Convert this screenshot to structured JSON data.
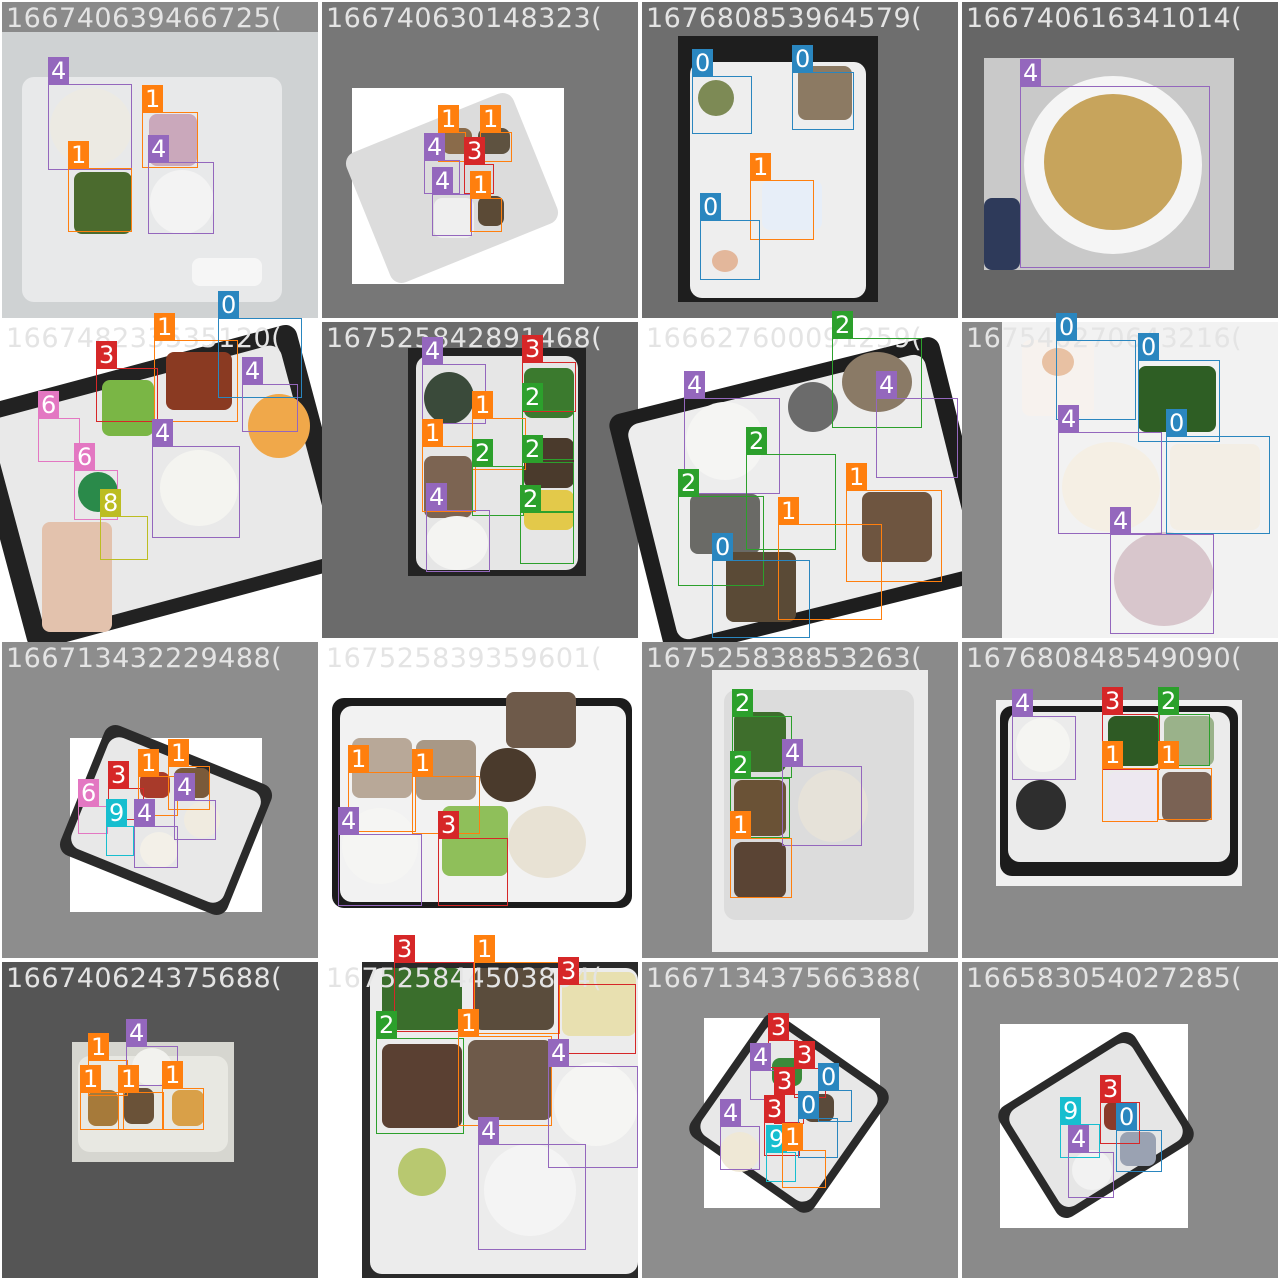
{
  "colors": {
    "0": "#2a86bf",
    "1": "#ff7f0e",
    "2": "#2ca02c",
    "3": "#d62728",
    "4": "#9467bd",
    "6": "#e377c2",
    "8": "#bcbd22",
    "9": "#17becf"
  },
  "cells": [
    {
      "id": "166740639466725(",
      "bg": "#8a8a8a",
      "boxes": [
        {
          "label": "4"
        },
        {
          "label": "1"
        },
        {
          "label": "1"
        },
        {
          "label": "4"
        }
      ]
    },
    {
      "id": "166740630148323(",
      "bg": "#777777",
      "boxes": [
        {
          "label": "1"
        },
        {
          "label": "1"
        },
        {
          "label": "4"
        },
        {
          "label": "3"
        },
        {
          "label": "4"
        },
        {
          "label": "1"
        }
      ]
    },
    {
      "id": "167680853964579(",
      "bg": "#6e6e6e",
      "boxes": [
        {
          "label": "0"
        },
        {
          "label": "0"
        },
        {
          "label": "1"
        },
        {
          "label": "0"
        }
      ]
    },
    {
      "id": "166740616341014(",
      "bg": "#666666",
      "boxes": [
        {
          "label": "4"
        }
      ]
    },
    {
      "id": "166748233535120(",
      "bg": "#ffffff",
      "boxes": [
        {
          "label": "1"
        },
        {
          "label": "0"
        },
        {
          "label": "3"
        },
        {
          "label": "4"
        },
        {
          "label": "6"
        },
        {
          "label": "4"
        },
        {
          "label": "6"
        },
        {
          "label": "8"
        }
      ]
    },
    {
      "id": "167525842891468(",
      "bg": "#6b6b6b",
      "boxes": [
        {
          "label": "4"
        },
        {
          "label": "3"
        },
        {
          "label": "2"
        },
        {
          "label": "1"
        },
        {
          "label": "1"
        },
        {
          "label": "2"
        },
        {
          "label": "2"
        },
        {
          "label": "4"
        },
        {
          "label": "2"
        }
      ]
    },
    {
      "id": "166627600091259(",
      "bg": "#ffffff",
      "boxes": [
        {
          "label": "2"
        },
        {
          "label": "4"
        },
        {
          "label": "4"
        },
        {
          "label": "2"
        },
        {
          "label": "2"
        },
        {
          "label": "1"
        },
        {
          "label": "1"
        },
        {
          "label": "0"
        }
      ]
    },
    {
      "id": "167540270643216(",
      "bg": "#8a8a8a",
      "boxes": [
        {
          "label": "0"
        },
        {
          "label": "0"
        },
        {
          "label": "4"
        },
        {
          "label": "0"
        },
        {
          "label": "4"
        }
      ]
    },
    {
      "id": "166713432229488(",
      "bg": "#8d8d8d",
      "boxes": [
        {
          "label": "3"
        },
        {
          "label": "1"
        },
        {
          "label": "1"
        },
        {
          "label": "6"
        },
        {
          "label": "4"
        },
        {
          "label": "9"
        },
        {
          "label": "4"
        }
      ]
    },
    {
      "id": "167525839359601(",
      "bg": "#ffffff",
      "boxes": [
        {
          "label": "1"
        },
        {
          "label": "1"
        },
        {
          "label": "4"
        },
        {
          "label": "3"
        }
      ]
    },
    {
      "id": "167525838853263(",
      "bg": "#8a8a8a",
      "boxes": [
        {
          "label": "2"
        },
        {
          "label": "2"
        },
        {
          "label": "4"
        },
        {
          "label": "1"
        }
      ]
    },
    {
      "id": "167680848549090(",
      "bg": "#8a8a8a",
      "boxes": [
        {
          "label": "4"
        },
        {
          "label": "3"
        },
        {
          "label": "2"
        },
        {
          "label": "1"
        },
        {
          "label": "1"
        }
      ]
    },
    {
      "id": "166740624375688(",
      "bg": "#555555",
      "boxes": [
        {
          "label": "1"
        },
        {
          "label": "4"
        },
        {
          "label": "1"
        },
        {
          "label": "1"
        },
        {
          "label": "1"
        }
      ]
    },
    {
      "id": "167525844503854(",
      "bg": "#ffffff",
      "boxes": [
        {
          "label": "3"
        },
        {
          "label": "1"
        },
        {
          "label": "3"
        },
        {
          "label": "2"
        },
        {
          "label": "1"
        },
        {
          "label": "4"
        },
        {
          "label": "4"
        }
      ]
    },
    {
      "id": "166713437566388(",
      "bg": "#8d8d8d",
      "boxes": [
        {
          "label": "3"
        },
        {
          "label": "4"
        },
        {
          "label": "3"
        },
        {
          "label": "3"
        },
        {
          "label": "0"
        },
        {
          "label": "4"
        },
        {
          "label": "3"
        },
        {
          "label": "0"
        },
        {
          "label": "9"
        },
        {
          "label": "1"
        }
      ]
    },
    {
      "id": "166583054027285(",
      "bg": "#8a8a8a",
      "boxes": [
        {
          "label": "3"
        },
        {
          "label": "9"
        },
        {
          "label": "0"
        },
        {
          "label": "4"
        }
      ]
    }
  ]
}
